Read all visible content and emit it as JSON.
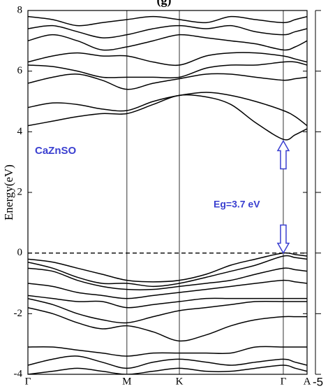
{
  "chart_data": {
    "type": "line",
    "title": "(g)",
    "y_label": "Energy(eV)",
    "annotations": [
      "CaZnSO",
      "Eg=3.7 eV"
    ],
    "corner_text": "-5",
    "color": "#000000",
    "annotation_color": "#3a3fd0",
    "x": [
      0,
      0.25,
      0.5,
      0.75,
      1,
      1.265,
      1.53,
      1.8,
      2.05,
      2.3,
      2.58,
      2.7,
      2.82
    ],
    "xlim": [
      0,
      2.82
    ],
    "xticks": [
      {
        "value": 0,
        "label": "Γ"
      },
      {
        "value": 1,
        "label": "M"
      },
      {
        "value": 1.53,
        "label": "K"
      },
      {
        "value": 2.58,
        "label": "Γ"
      },
      {
        "value": 2.82,
        "label": "A"
      }
    ],
    "ylim": [
      -4,
      8
    ],
    "yticks": [
      -4,
      -2,
      0,
      2,
      4,
      6,
      8
    ],
    "fermi_level": 0,
    "gap_arrow": {
      "x": 2.58,
      "from": 0,
      "to": 3.7
    },
    "series": [
      {
        "values": [
          4.2,
          4.35,
          4.5,
          4.6,
          4.6,
          4.9,
          5.2,
          5.15,
          4.9,
          4.3,
          3.75,
          3.9,
          4.1
        ]
      },
      {
        "values": [
          4.8,
          4.95,
          4.9,
          4.75,
          4.7,
          5.0,
          5.2,
          5.3,
          5.2,
          5.0,
          4.7,
          4.5,
          4.2
        ]
      },
      {
        "values": [
          5.6,
          5.8,
          5.9,
          5.7,
          5.4,
          5.6,
          5.75,
          5.9,
          5.9,
          5.8,
          5.7,
          5.75,
          5.8
        ]
      },
      {
        "values": [
          6.2,
          6.15,
          6.0,
          5.8,
          5.8,
          5.8,
          5.8,
          6.1,
          6.2,
          6.2,
          6.3,
          6.3,
          6.2
        ]
      },
      {
        "values": [
          6.3,
          6.5,
          6.6,
          6.5,
          6.5,
          6.3,
          6.2,
          6.5,
          6.6,
          6.6,
          6.5,
          6.4,
          6.3
        ]
      },
      {
        "values": [
          7.0,
          7.2,
          7.0,
          6.7,
          6.8,
          7.0,
          7.2,
          7.1,
          7.0,
          6.9,
          6.7,
          6.8,
          7.0
        ]
      },
      {
        "values": [
          7.4,
          7.5,
          7.3,
          7.1,
          7.2,
          7.4,
          7.5,
          7.4,
          7.5,
          7.3,
          7.2,
          7.3,
          7.4
        ]
      },
      {
        "values": [
          7.8,
          7.7,
          7.5,
          7.6,
          7.7,
          7.8,
          7.7,
          7.6,
          7.8,
          7.7,
          7.6,
          7.7,
          7.8
        ]
      },
      {
        "values": [
          -0.2,
          -0.3,
          -0.5,
          -0.7,
          -0.9,
          -0.95,
          -0.9,
          -0.7,
          -0.4,
          -0.2,
          0,
          -0.05,
          -0.1
        ]
      },
      {
        "values": [
          -0.3,
          -0.5,
          -0.8,
          -1.0,
          -1.0,
          -1.1,
          -1.0,
          -0.8,
          -0.6,
          -0.4,
          -0.1,
          -0.15,
          -0.2
        ]
      },
      {
        "values": [
          -0.5,
          -0.6,
          -0.9,
          -1.1,
          -1.2,
          -1.2,
          -1.1,
          -1.0,
          -0.9,
          -0.7,
          -0.5,
          -0.55,
          -0.6
        ]
      },
      {
        "values": [
          -1.0,
          -1.1,
          -1.3,
          -1.4,
          -1.5,
          -1.4,
          -1.3,
          -1.2,
          -1.1,
          -1.0,
          -0.9,
          -0.95,
          -1.0
        ]
      },
      {
        "values": [
          -1.4,
          -1.5,
          -1.6,
          -1.6,
          -1.8,
          -1.7,
          -1.6,
          -1.5,
          -1.5,
          -1.5,
          -1.5,
          -1.5,
          -1.5
        ]
      },
      {
        "values": [
          -1.5,
          -1.7,
          -2.0,
          -2.2,
          -2.3,
          -2.1,
          -1.9,
          -1.8,
          -1.7,
          -1.6,
          -1.6,
          -1.6,
          -1.6
        ]
      },
      {
        "values": [
          -1.8,
          -2.0,
          -2.3,
          -2.5,
          -2.4,
          -2.6,
          -2.9,
          -2.7,
          -2.4,
          -2.2,
          -2.1,
          -2.1,
          -2.1
        ]
      },
      {
        "values": [
          -3.1,
          -3.1,
          -3.2,
          -3.3,
          -3.4,
          -3.3,
          -3.3,
          -3.3,
          -3.3,
          -3.1,
          -3.1,
          -3.1,
          -3.1
        ]
      },
      {
        "values": [
          -3.7,
          -3.5,
          -3.4,
          -3.6,
          -3.8,
          -3.6,
          -3.5,
          -3.6,
          -3.7,
          -3.6,
          -3.5,
          -3.6,
          -3.7
        ]
      },
      {
        "values": [
          -4.0,
          -3.9,
          -3.8,
          -3.9,
          -4.0,
          -3.9,
          -3.8,
          -3.9,
          -3.9,
          -3.8,
          -3.7,
          -3.8,
          -3.9
        ]
      }
    ]
  }
}
